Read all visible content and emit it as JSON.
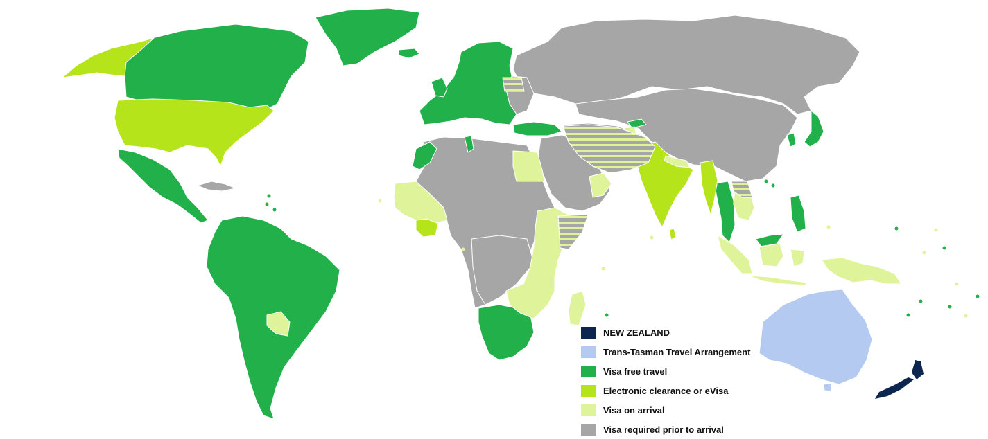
{
  "colors": {
    "new_zealand": "#0d2650",
    "trans_tasman": "#b5caf0",
    "visa_free": "#22b04b",
    "evisa": "#b5e41a",
    "on_arrival": "#dff39b",
    "required": "#a6a6a6",
    "border": "#ffffff"
  },
  "legend": {
    "items": [
      {
        "label": "NEW ZEALAND",
        "color": "#0d2650"
      },
      {
        "label": "Trans-Tasman Travel Arrangement",
        "color": "#b5caf0"
      },
      {
        "label": "Visa free travel",
        "color": "#22b04b"
      },
      {
        "label": "Electronic clearance or eVisa",
        "color": "#b5e41a"
      },
      {
        "label": "Visa on arrival",
        "color": "#dff39b"
      },
      {
        "label": "Visa required prior to arrival",
        "color": "#a6a6a6"
      }
    ]
  }
}
